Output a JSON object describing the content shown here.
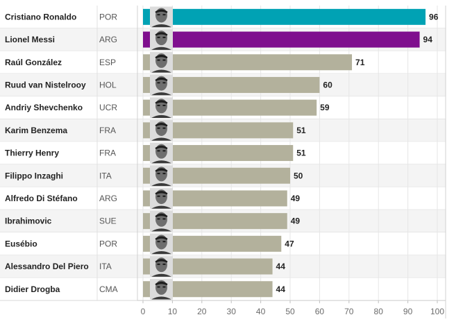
{
  "chart_data": {
    "type": "bar",
    "orientation": "horizontal",
    "title": "",
    "xlabel": "",
    "ylabel": "",
    "xlim": [
      0,
      100
    ],
    "xticks": [
      0,
      10,
      20,
      30,
      40,
      50,
      60,
      70,
      80,
      90,
      100
    ],
    "grid": true,
    "categories": [
      "Cristiano Ronaldo",
      "Lionel Messi",
      "Raúl González",
      "Ruud van Nistelrooy",
      "Andriy Shevchenko",
      "Karim Benzema",
      "Thierry Henry",
      "Filippo Inzaghi",
      "Alfredo Di Stéfano",
      "Ibrahimovic",
      "Eusébio",
      "Alessandro Del Piero",
      "Didier Drogba"
    ],
    "countries": [
      "POR",
      "ARG",
      "ESP",
      "HOL",
      "UCR",
      "FRA",
      "FRA",
      "ITA",
      "ARG",
      "SUE",
      "POR",
      "ITA",
      "CMA"
    ],
    "values": [
      96,
      94,
      71,
      60,
      59,
      51,
      51,
      50,
      49,
      49,
      47,
      44,
      44
    ],
    "colors": [
      "#00a2b4",
      "#7f0f8e",
      "#b3b19c",
      "#b3b19c",
      "#b3b19c",
      "#b3b19c",
      "#b3b19c",
      "#b3b19c",
      "#b3b19c",
      "#b3b19c",
      "#b3b19c",
      "#b3b19c",
      "#b3b19c"
    ],
    "photo_icon": "player-portrait-icon"
  }
}
